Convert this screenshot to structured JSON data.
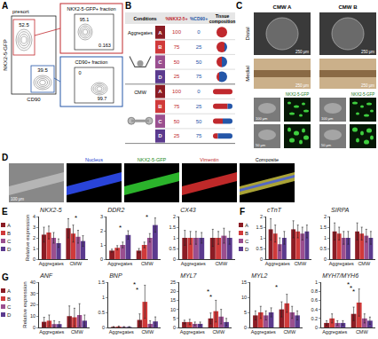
{
  "panel_letters": [
    "A",
    "B",
    "C",
    "D",
    "E",
    "F",
    "G"
  ],
  "panel_a": {
    "presort_label": "presort",
    "x_label": "CD90",
    "y_label": "NKX2-5-GFP",
    "presort_values": [
      52.5,
      39.5
    ],
    "gfp_fraction": {
      "title": "NKX2-5-GFP+ fraction",
      "values": [
        95.1,
        0.163
      ]
    },
    "cd90_fraction": {
      "title": "CD90+ fraction",
      "values": [
        0,
        99.7
      ]
    }
  },
  "panel_b": {
    "headers": [
      "Conditions",
      "%NKX2-5+",
      "%CD90+",
      "Tissue composition"
    ],
    "groups": [
      {
        "name": "Aggregates",
        "rows": [
          {
            "condition": "A",
            "nkx": 100,
            "cd90": 0
          },
          {
            "condition": "B",
            "nkx": 75,
            "cd90": 25
          },
          {
            "condition": "C",
            "nkx": 50,
            "cd90": 50
          },
          {
            "condition": "D",
            "nkx": 25,
            "cd90": 75
          }
        ]
      },
      {
        "name": "CMW",
        "rows": [
          {
            "condition": "A",
            "nkx": 100,
            "cd90": 0
          },
          {
            "condition": "B",
            "nkx": 75,
            "cd90": 25
          },
          {
            "condition": "C",
            "nkx": 50,
            "cd90": 50
          },
          {
            "condition": "D",
            "nkx": 25,
            "cd90": 75
          }
        ]
      }
    ]
  },
  "panel_c": {
    "columns": [
      "CMW A",
      "CMW B"
    ],
    "rows": [
      "Distal",
      "Medial"
    ],
    "channel": "NKX2-5-GFP",
    "scale_large": "250 μm",
    "scale_medium": "100 μm",
    "scale_small": "50 μm"
  },
  "panel_d": {
    "channels": [
      "Nucleus",
      "NKX2-5-GFP",
      "Vimentin",
      "Composite"
    ],
    "scale": "100 μm"
  },
  "chart_data": [
    {
      "type": "bar",
      "title": "NKX2-5",
      "y_label": "Relative expression",
      "categories": [
        "Aggregates",
        "CMW"
      ],
      "ylim": [
        0,
        4
      ],
      "yticks": [
        0,
        1,
        2,
        3,
        4
      ],
      "legend": "left",
      "series": [
        {
          "name": "A",
          "color": "#8b1c24",
          "values": [
            2.3,
            2.9
          ],
          "errors": [
            0.7,
            0.9
          ]
        },
        {
          "name": "B",
          "color": "#d03a3a",
          "values": [
            2.5,
            2.4
          ],
          "errors": [
            0.6,
            0.8
          ]
        },
        {
          "name": "C",
          "color": "#9a4f8f",
          "values": [
            2.0,
            2.1
          ],
          "errors": [
            0.5,
            0.6
          ]
        },
        {
          "name": "D",
          "color": "#5b3a8e",
          "values": [
            1.5,
            1.7
          ],
          "errors": [
            0.4,
            0.5
          ]
        }
      ],
      "annotations": [
        {
          "text": "*",
          "x": 1,
          "y": 3.9
        }
      ]
    },
    {
      "type": "bar",
      "title": "DDR2",
      "categories": [
        "Aggregates",
        "CMW"
      ],
      "ylim": [
        0,
        3
      ],
      "yticks": [
        0,
        1,
        2,
        3
      ],
      "series": [
        {
          "name": "A",
          "color": "#8b1c24",
          "values": [
            0.6,
            0.6
          ],
          "errors": [
            0.1,
            0.15
          ]
        },
        {
          "name": "B",
          "color": "#d03a3a",
          "values": [
            0.8,
            1.0
          ],
          "errors": [
            0.15,
            0.2
          ]
        },
        {
          "name": "C",
          "color": "#9a4f8f",
          "values": [
            1.0,
            1.5
          ],
          "errors": [
            0.2,
            0.3
          ]
        },
        {
          "name": "D",
          "color": "#5b3a8e",
          "values": [
            1.7,
            2.4
          ],
          "errors": [
            0.3,
            0.5
          ]
        }
      ],
      "annotations": [
        {
          "text": "*",
          "x": 0,
          "y": 2.2
        },
        {
          "text": "*",
          "x": 1,
          "y": 2.95
        }
      ]
    },
    {
      "type": "bar",
      "title": "CX43",
      "categories": [
        "Aggregates",
        "CMW"
      ],
      "ylim": [
        0,
        2
      ],
      "yticks": [
        0,
        0.5,
        1,
        1.5,
        2
      ],
      "series": [
        {
          "name": "A",
          "color": "#8b1c24",
          "values": [
            1.0,
            1.0
          ],
          "errors": [
            0.35,
            0.4
          ]
        },
        {
          "name": "B",
          "color": "#d03a3a",
          "values": [
            1.0,
            1.0
          ],
          "errors": [
            0.3,
            0.3
          ]
        },
        {
          "name": "C",
          "color": "#9a4f8f",
          "values": [
            1.0,
            1.1
          ],
          "errors": [
            0.3,
            0.35
          ]
        },
        {
          "name": "D",
          "color": "#5b3a8e",
          "values": [
            1.0,
            1.0
          ],
          "errors": [
            0.25,
            0.3
          ]
        }
      ]
    },
    {
      "type": "bar",
      "title": "cTnT",
      "categories": [
        "Aggregates",
        "CMW"
      ],
      "ylim": [
        0,
        2
      ],
      "yticks": [
        0,
        0.5,
        1,
        1.5,
        2
      ],
      "legend": "left",
      "series": [
        {
          "name": "A",
          "color": "#8b1c24",
          "values": [
            1.4,
            1.4
          ],
          "errors": [
            0.5,
            0.4
          ]
        },
        {
          "name": "B",
          "color": "#d03a3a",
          "values": [
            1.2,
            1.3
          ],
          "errors": [
            0.4,
            0.3
          ]
        },
        {
          "name": "C",
          "color": "#9a4f8f",
          "values": [
            0.7,
            1.2
          ],
          "errors": [
            0.3,
            0.3
          ]
        },
        {
          "name": "D",
          "color": "#5b3a8e",
          "values": [
            1.0,
            1.3
          ],
          "errors": [
            0.3,
            0.3
          ]
        }
      ]
    },
    {
      "type": "bar",
      "title": "SIRPA",
      "categories": [
        "Aggregates",
        "CMW"
      ],
      "ylim": [
        0,
        2
      ],
      "yticks": [
        0,
        0.5,
        1,
        1.5,
        2
      ],
      "series": [
        {
          "name": "A",
          "color": "#8b1c24",
          "values": [
            1.3,
            1.3
          ],
          "errors": [
            0.4,
            0.4
          ]
        },
        {
          "name": "B",
          "color": "#d03a3a",
          "values": [
            1.2,
            1.2
          ],
          "errors": [
            0.3,
            0.3
          ]
        },
        {
          "name": "C",
          "color": "#9a4f8f",
          "values": [
            1.0,
            1.1
          ],
          "errors": [
            0.3,
            0.3
          ]
        },
        {
          "name": "D",
          "color": "#5b3a8e",
          "values": [
            1.0,
            1.0
          ],
          "errors": [
            0.3,
            0.3
          ]
        }
      ]
    },
    {
      "type": "bar",
      "title": "ANF",
      "y_label": "Relative expression",
      "categories": [
        "Aggregates",
        "CMW"
      ],
      "ylim": [
        0,
        40
      ],
      "yticks": [
        0,
        10,
        20,
        30,
        40
      ],
      "legend": "left",
      "series": [
        {
          "name": "A",
          "color": "#8b1c24",
          "values": [
            5,
            10
          ],
          "errors": [
            4,
            9
          ]
        },
        {
          "name": "B",
          "color": "#d03a3a",
          "values": [
            6,
            9
          ],
          "errors": [
            5,
            8
          ]
        },
        {
          "name": "C",
          "color": "#9a4f8f",
          "values": [
            3,
            11
          ],
          "errors": [
            3,
            10
          ]
        },
        {
          "name": "D",
          "color": "#5b3a8e",
          "values": [
            3,
            6
          ],
          "errors": [
            2,
            5
          ]
        }
      ]
    },
    {
      "type": "bar",
      "title": "BNP",
      "categories": [
        "Aggregates",
        "CMW"
      ],
      "ylim": [
        0,
        1.5
      ],
      "yticks": [
        0,
        0.5,
        1,
        1.5
      ],
      "series": [
        {
          "name": "A",
          "color": "#8b1c24",
          "values": [
            0.02,
            0.25
          ],
          "errors": [
            0.01,
            0.2
          ]
        },
        {
          "name": "B",
          "color": "#d03a3a",
          "values": [
            0.03,
            0.85
          ],
          "errors": [
            0.02,
            0.55
          ]
        },
        {
          "name": "C",
          "color": "#9a4f8f",
          "values": [
            0.02,
            0.12
          ],
          "errors": [
            0.01,
            0.1
          ]
        },
        {
          "name": "D",
          "color": "#5b3a8e",
          "values": [
            0.02,
            0.2
          ],
          "errors": [
            0.01,
            0.15
          ]
        }
      ],
      "annotations": [
        {
          "text": "*",
          "x": 0.5,
          "y": 1.42
        },
        {
          "text": "*",
          "x": 0.6,
          "y": 1.26
        }
      ]
    },
    {
      "type": "bar",
      "title": "MYL7",
      "categories": [
        "Aggregates",
        "CMW"
      ],
      "ylim": [
        0,
        25
      ],
      "yticks": [
        0,
        5,
        10,
        15,
        20,
        25
      ],
      "series": [
        {
          "name": "A",
          "color": "#8b1c24",
          "values": [
            3,
            5
          ],
          "errors": [
            1,
            3
          ]
        },
        {
          "name": "B",
          "color": "#d03a3a",
          "values": [
            3,
            9
          ],
          "errors": [
            1.5,
            6
          ]
        },
        {
          "name": "C",
          "color": "#9a4f8f",
          "values": [
            2,
            6
          ],
          "errors": [
            1,
            4
          ]
        },
        {
          "name": "D",
          "color": "#5b3a8e",
          "values": [
            2,
            3
          ],
          "errors": [
            1,
            2
          ]
        }
      ],
      "annotations": [
        {
          "text": "*",
          "x": 0.6,
          "y": 20
        },
        {
          "text": "*",
          "x": 0.7,
          "y": 17
        }
      ]
    },
    {
      "type": "bar",
      "title": "MYL2",
      "categories": [
        "Aggregates",
        "CMW"
      ],
      "ylim": [
        0,
        15
      ],
      "yticks": [
        0,
        5,
        10,
        15
      ],
      "series": [
        {
          "name": "A",
          "color": "#8b1c24",
          "values": [
            4,
            6
          ],
          "errors": [
            1.5,
            2.5
          ]
        },
        {
          "name": "B",
          "color": "#d03a3a",
          "values": [
            5,
            8
          ],
          "errors": [
            2,
            3
          ]
        },
        {
          "name": "C",
          "color": "#9a4f8f",
          "values": [
            4,
            5
          ],
          "errors": [
            1.5,
            2
          ]
        },
        {
          "name": "D",
          "color": "#5b3a8e",
          "values": [
            5,
            4
          ],
          "errors": [
            1.5,
            1.5
          ]
        }
      ],
      "annotations": [
        {
          "text": "*",
          "x": 0.5,
          "y": 13.5
        }
      ]
    },
    {
      "type": "bar",
      "title": "MYH7/MYH6",
      "categories": [
        "Aggregates",
        "CMW"
      ],
      "ylim": [
        0,
        1
      ],
      "yticks": [
        0,
        0.2,
        0.4,
        0.6,
        0.8,
        1
      ],
      "series": [
        {
          "name": "A",
          "color": "#8b1c24",
          "values": [
            0.1,
            0.3
          ],
          "errors": [
            0.05,
            0.15
          ]
        },
        {
          "name": "B",
          "color": "#d03a3a",
          "values": [
            0.2,
            0.55
          ],
          "errors": [
            0.1,
            0.3
          ]
        },
        {
          "name": "C",
          "color": "#9a4f8f",
          "values": [
            0.1,
            0.2
          ],
          "errors": [
            0.05,
            0.1
          ]
        },
        {
          "name": "D",
          "color": "#5b3a8e",
          "values": [
            0.1,
            0.15
          ],
          "errors": [
            0.05,
            0.08
          ]
        }
      ],
      "annotations": [
        {
          "text": "*",
          "x": 0.5,
          "y": 0.95
        },
        {
          "text": "*",
          "x": 0.6,
          "y": 0.87
        },
        {
          "text": "*",
          "x": 0.7,
          "y": 0.79
        }
      ]
    }
  ]
}
